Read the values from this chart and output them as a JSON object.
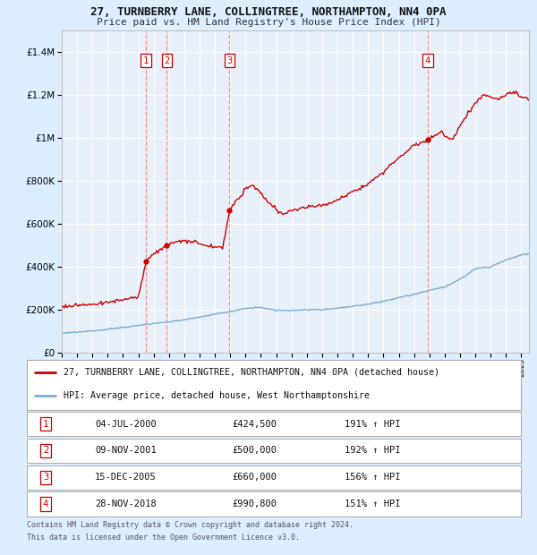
{
  "title1": "27, TURNBERRY LANE, COLLINGTREE, NORTHAMPTON, NN4 0PA",
  "title2": "Price paid vs. HM Land Registry's House Price Index (HPI)",
  "legend_line1": "27, TURNBERRY LANE, COLLINGTREE, NORTHAMPTON, NN4 0PA (detached house)",
  "legend_line2": "HPI: Average price, detached house, West Northamptonshire",
  "footer1": "Contains HM Land Registry data © Crown copyright and database right 2024.",
  "footer2": "This data is licensed under the Open Government Licence v3.0.",
  "sales": [
    {
      "num": 1,
      "date": "04-JUL-2000",
      "price": 424500,
      "year": 2000.5,
      "pct": "191%",
      "dir": "↑"
    },
    {
      "num": 2,
      "date": "09-NOV-2001",
      "price": 500000,
      "year": 2001.85,
      "pct": "192%",
      "dir": "↑"
    },
    {
      "num": 3,
      "date": "15-DEC-2005",
      "price": 660000,
      "year": 2005.95,
      "pct": "156%",
      "dir": "↑"
    },
    {
      "num": 4,
      "date": "28-NOV-2018",
      "price": 990800,
      "year": 2018.9,
      "pct": "151%",
      "dir": "↑"
    }
  ],
  "red_line_color": "#cc0000",
  "blue_line_color": "#7aaed4",
  "background_color": "#ddeeff",
  "plot_bg": "#e8f0fa",
  "grid_color": "#ffffff",
  "vline_color": "#ff8888",
  "box_color": "#cc0000",
  "ylim": [
    0,
    1500000
  ],
  "yticks": [
    0,
    200000,
    400000,
    600000,
    800000,
    1000000,
    1200000,
    1400000
  ],
  "xmin": 1995,
  "xmax": 2025.5
}
